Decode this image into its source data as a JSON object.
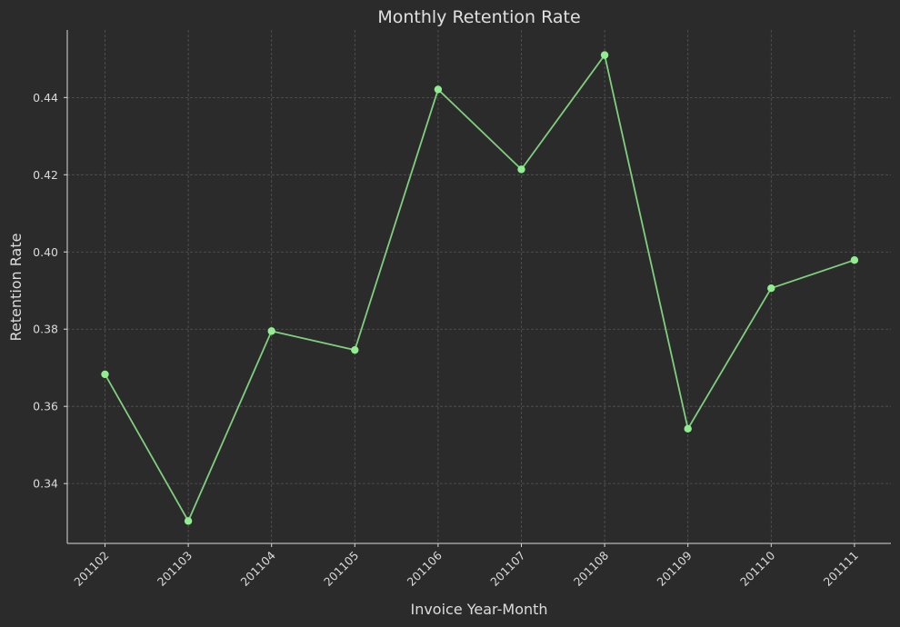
{
  "chart_data": {
    "type": "line",
    "title": "Monthly Retention Rate",
    "xlabel": "Invoice Year-Month",
    "ylabel": "Retention Rate",
    "categories": [
      "201102",
      "201103",
      "201104",
      "201105",
      "201106",
      "201107",
      "201108",
      "201109",
      "201110",
      "201111"
    ],
    "series": [
      {
        "values": [
          0.3683,
          0.3303,
          0.3795,
          0.3746,
          0.4421,
          0.4214,
          0.451,
          0.3542,
          0.3906,
          0.3979
        ]
      }
    ],
    "yticks": [
      0.34,
      0.36,
      0.38,
      0.4,
      0.42,
      0.44
    ],
    "ytick_labels": [
      "0.34",
      "0.36",
      "0.38",
      "0.40",
      "0.42",
      "0.44"
    ],
    "ylim": [
      0.3245,
      0.4575
    ],
    "grid": true,
    "colors": {
      "background": "#2b2b2b",
      "line": "#7fcf7f",
      "marker": "#90ee90",
      "grid": "#555555",
      "axis": "#d8d8d8",
      "text": "#d9d9d9"
    }
  }
}
